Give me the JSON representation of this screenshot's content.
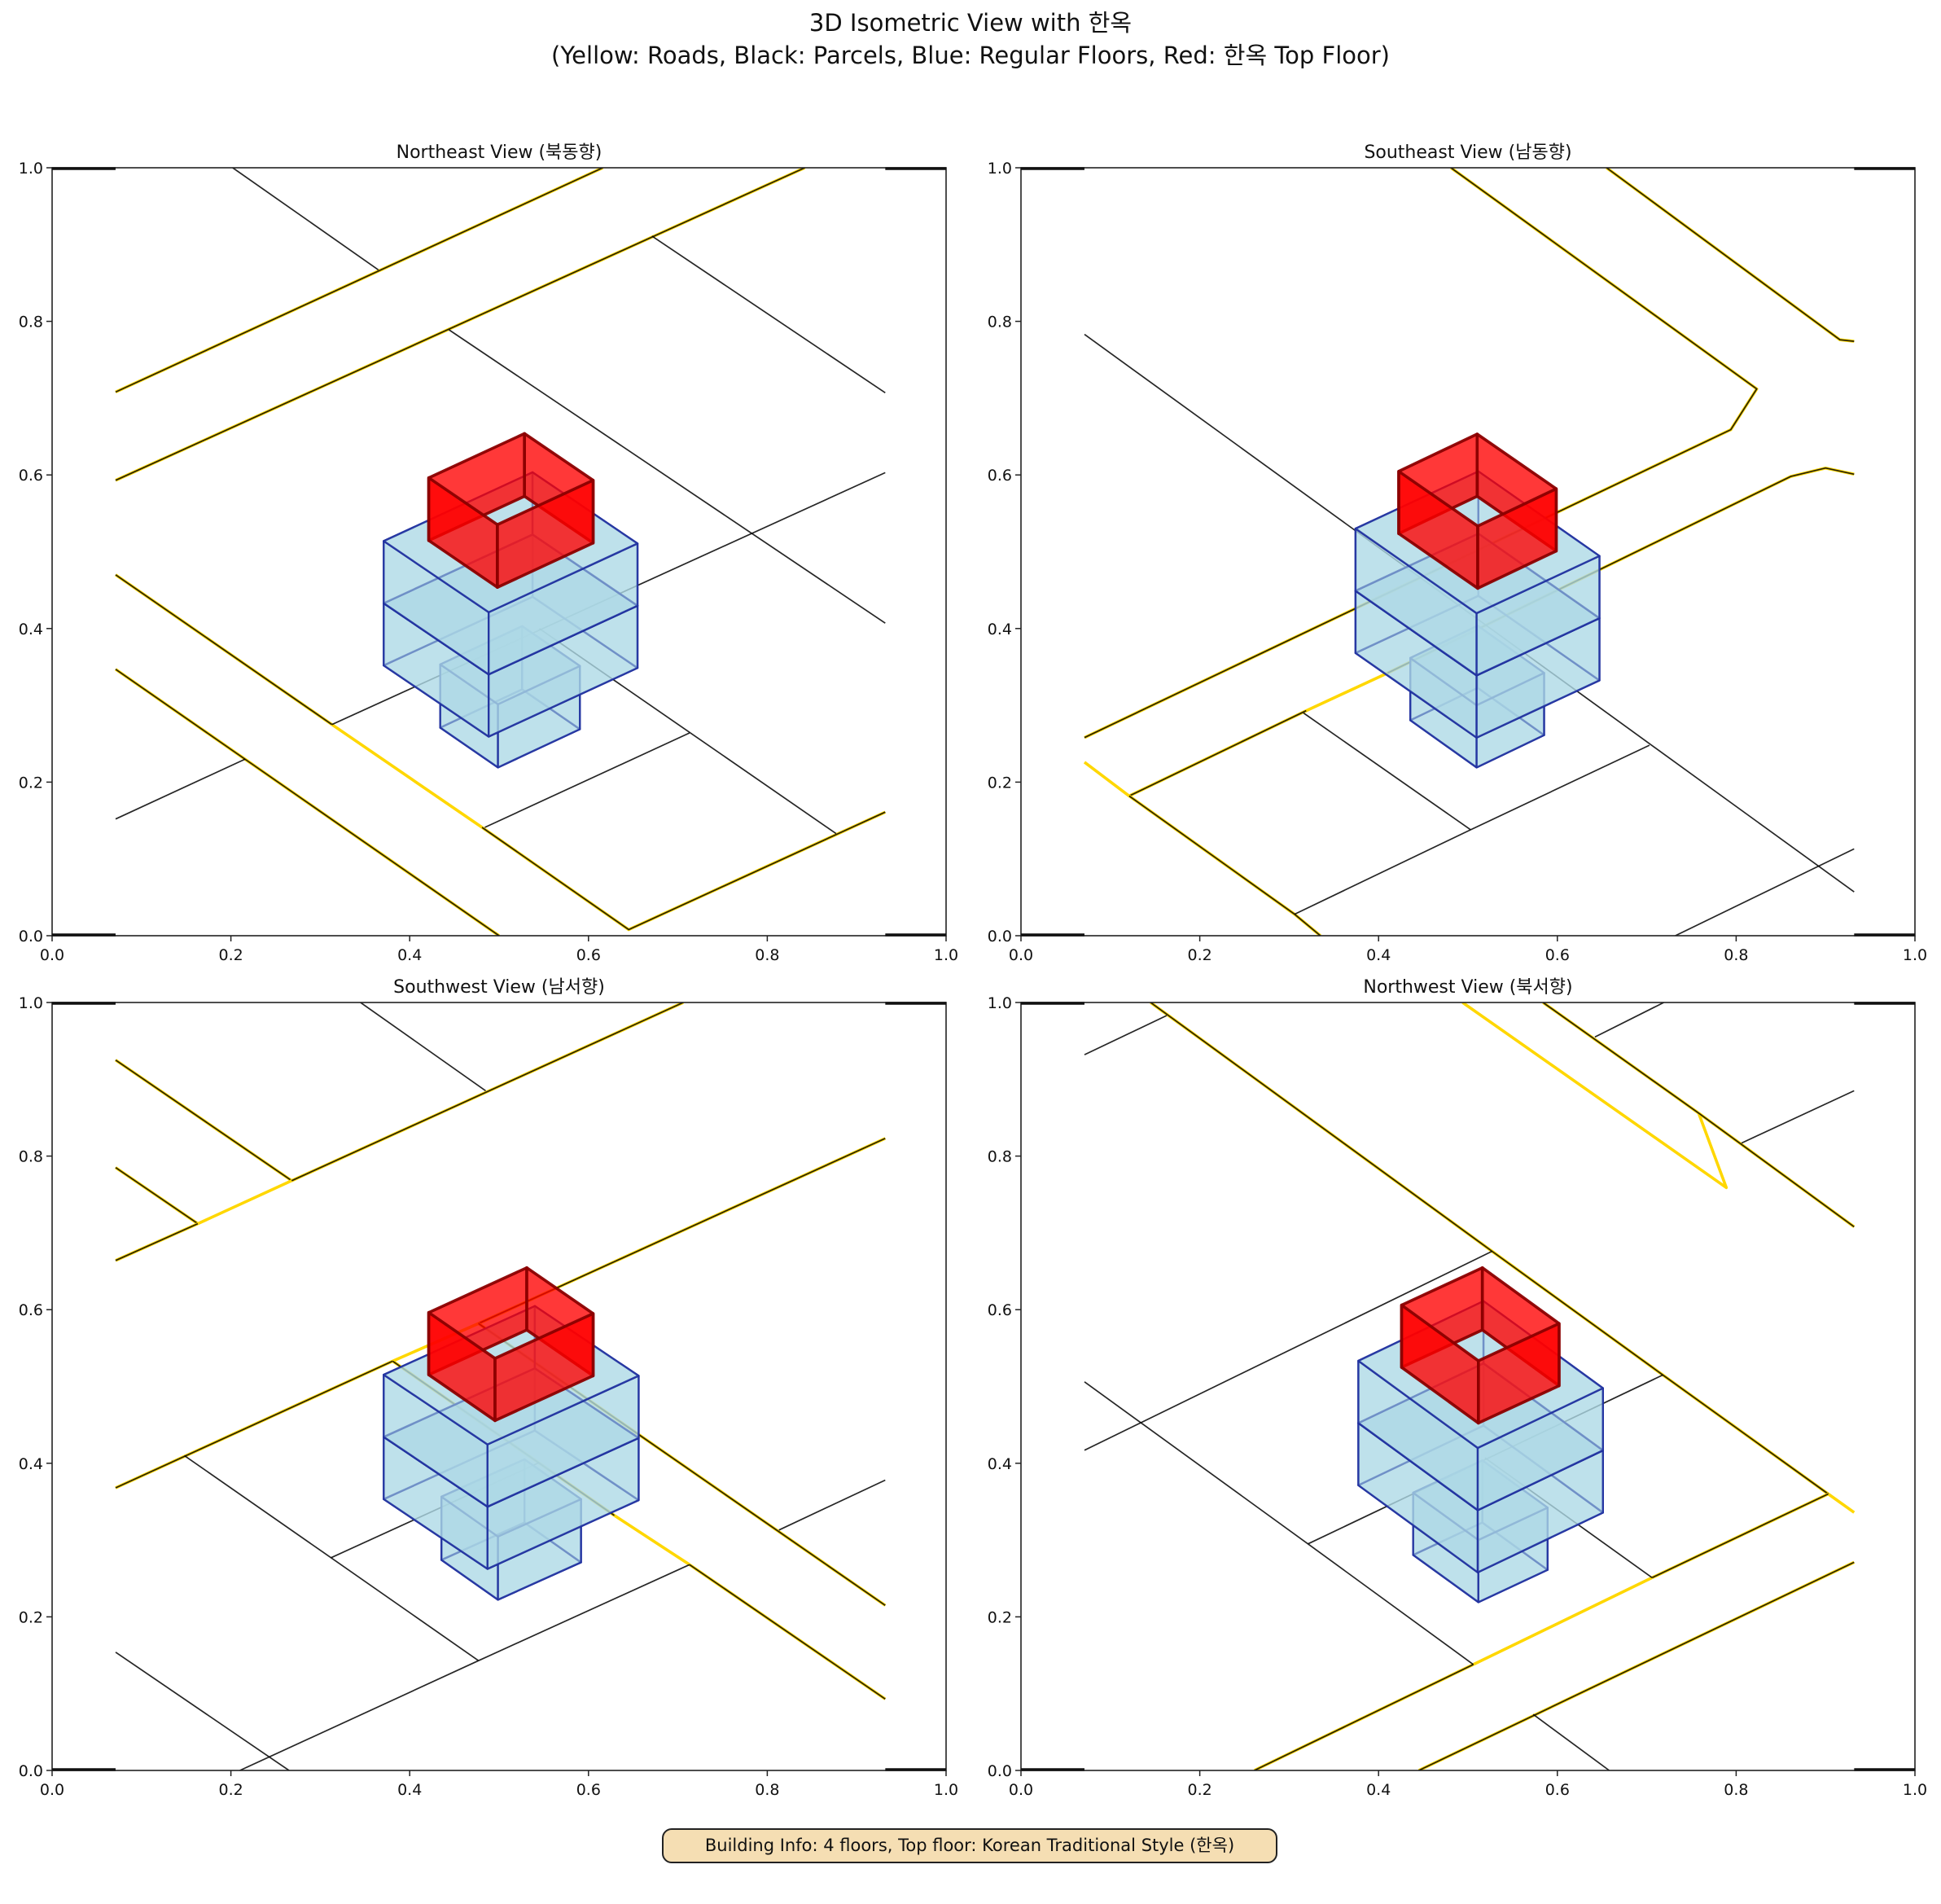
{
  "figure": {
    "title_line1": "3D Isometric View with 한옥",
    "title_line2": "(Yellow: Roads, Black: Parcels, Blue: Regular Floors, Red: 한옥 Top Floor)",
    "info_box": "Building Info: 4 floors, Top floor: Korean Traditional Style (한옥)"
  },
  "colors": {
    "road": "#ffd700",
    "parcel": "#000000",
    "regular_floor": "#add8e6",
    "regular_edge": "#1f2f9f",
    "hanok_floor": "#ff0000",
    "hanok_edge": "#8b0000",
    "info_bg": "#f5deb3"
  },
  "chart_data": [
    {
      "type": "line",
      "title": "Northeast View (북동향)",
      "xlim": [
        0,
        1
      ],
      "ylim": [
        0,
        1
      ],
      "xticks": [
        "0.0",
        "0.2",
        "0.4",
        "0.6",
        "0.8",
        "1.0"
      ],
      "yticks": [
        "0.0",
        "0.2",
        "0.4",
        "0.6",
        "0.8",
        "1.0"
      ],
      "building": {
        "floors": 4,
        "top_floor": "한옥"
      },
      "segments": [
        {
          "kind": "road_parcel",
          "points": [
            [
              0.071,
              0.708
            ],
            [
              0.616,
              1.0
            ]
          ]
        },
        {
          "kind": "road_parcel",
          "points": [
            [
              0.071,
              0.593
            ],
            [
              0.842,
              1.0
            ]
          ]
        },
        {
          "kind": "road_parcel",
          "points": [
            [
              0.071,
              0.47
            ],
            [
              0.313,
              0.275
            ]
          ]
        },
        {
          "kind": "road",
          "points": [
            [
              0.313,
              0.275
            ],
            [
              0.481,
              0.141
            ]
          ]
        },
        {
          "kind": "road_parcel",
          "points": [
            [
              0.481,
              0.141
            ],
            [
              0.645,
              0.008
            ],
            [
              0.932,
              0.161
            ]
          ]
        },
        {
          "kind": "road_parcel",
          "points": [
            [
              0.071,
              0.347
            ],
            [
              0.5,
              0.0
            ]
          ]
        },
        {
          "kind": "parcel",
          "points": [
            [
              0.202,
              1.0
            ],
            [
              0.365,
              0.867
            ]
          ]
        },
        {
          "kind": "parcel",
          "points": [
            [
              0.444,
              0.789
            ],
            [
              0.932,
              0.407
            ]
          ]
        },
        {
          "kind": "parcel",
          "points": [
            [
              0.671,
              0.911
            ],
            [
              0.932,
              0.707
            ]
          ]
        },
        {
          "kind": "parcel",
          "points": [
            [
              0.932,
              0.603
            ],
            [
              0.313,
              0.275
            ]
          ]
        },
        {
          "kind": "parcel",
          "points": [
            [
              0.216,
              0.23
            ],
            [
              0.071,
              0.152
            ]
          ]
        },
        {
          "kind": "parcel",
          "points": [
            [
              0.545,
              0.4
            ],
            [
              0.877,
              0.133
            ]
          ]
        },
        {
          "kind": "parcel",
          "points": [
            [
              0.484,
              0.141
            ],
            [
              0.713,
              0.264
            ]
          ]
        }
      ]
    },
    {
      "type": "line",
      "title": "Southeast View (남동향)",
      "xlim": [
        0,
        1
      ],
      "ylim": [
        0,
        1
      ],
      "xticks": [
        "0.0",
        "0.2",
        "0.4",
        "0.6",
        "0.8",
        "1.0"
      ],
      "yticks": [
        "0.0",
        "0.2",
        "0.4",
        "0.6",
        "0.8",
        "1.0"
      ],
      "building": {
        "floors": 4,
        "top_floor": "한옥"
      },
      "segments": [
        {
          "kind": "road_parcel",
          "points": [
            [
              0.481,
              1.0
            ],
            [
              0.823,
              0.712
            ],
            [
              0.794,
              0.659
            ],
            [
              0.071,
              0.258
            ]
          ]
        },
        {
          "kind": "road_parcel",
          "points": [
            [
              0.655,
              1.0
            ],
            [
              0.916,
              0.776
            ],
            [
              0.932,
              0.774
            ]
          ]
        },
        {
          "kind": "road_parcel",
          "points": [
            [
              0.932,
              0.601
            ],
            [
              0.9,
              0.609
            ],
            [
              0.861,
              0.598
            ],
            [
              0.41,
              0.342
            ]
          ]
        },
        {
          "kind": "road",
          "points": [
            [
              0.41,
              0.342
            ],
            [
              0.319,
              0.293
            ]
          ]
        },
        {
          "kind": "road_parcel",
          "points": [
            [
              0.319,
              0.293
            ],
            [
              0.121,
              0.182
            ]
          ]
        },
        {
          "kind": "road",
          "points": [
            [
              0.071,
              0.226
            ],
            [
              0.121,
              0.182
            ]
          ]
        },
        {
          "kind": "road_parcel",
          "points": [
            [
              0.121,
              0.182
            ],
            [
              0.306,
              0.028
            ],
            [
              0.335,
              0.0
            ]
          ]
        },
        {
          "kind": "parcel",
          "points": [
            [
              0.071,
              0.783
            ],
            [
              0.932,
              0.057
            ]
          ]
        },
        {
          "kind": "parcel",
          "points": [
            [
              0.316,
              0.29
            ],
            [
              0.503,
              0.138
            ]
          ]
        },
        {
          "kind": "parcel",
          "points": [
            [
              0.306,
              0.028
            ],
            [
              0.503,
              0.138
            ],
            [
              0.703,
              0.248
            ]
          ]
        },
        {
          "kind": "parcel",
          "points": [
            [
              0.732,
              0.0
            ],
            [
              0.932,
              0.113
            ]
          ]
        }
      ]
    },
    {
      "type": "line",
      "title": "Southwest View (남서향)",
      "xlim": [
        0,
        1
      ],
      "ylim": [
        0,
        1
      ],
      "xticks": [
        "0.0",
        "0.2",
        "0.4",
        "0.6",
        "0.8",
        "1.0"
      ],
      "yticks": [
        "0.0",
        "0.2",
        "0.4",
        "0.6",
        "0.8",
        "1.0"
      ],
      "building": {
        "floors": 4,
        "top_floor": "한옥"
      },
      "segments": [
        {
          "kind": "road_parcel",
          "points": [
            [
              0.071,
              0.925
            ],
            [
              0.268,
              0.768
            ]
          ]
        },
        {
          "kind": "road_parcel",
          "points": [
            [
              0.071,
              0.785
            ],
            [
              0.163,
              0.712
            ]
          ]
        },
        {
          "kind": "road_parcel",
          "points": [
            [
              0.071,
              0.664
            ],
            [
              0.163,
              0.712
            ]
          ]
        },
        {
          "kind": "road",
          "points": [
            [
              0.163,
              0.712
            ],
            [
              0.268,
              0.768
            ]
          ]
        },
        {
          "kind": "road_parcel",
          "points": [
            [
              0.268,
              0.768
            ],
            [
              0.706,
              1.0
            ]
          ]
        },
        {
          "kind": "road_parcel",
          "points": [
            [
              0.071,
              0.368
            ],
            [
              0.381,
              0.533
            ]
          ]
        },
        {
          "kind": "road",
          "points": [
            [
              0.381,
              0.533
            ],
            [
              0.477,
              0.582
            ]
          ]
        },
        {
          "kind": "road_parcel",
          "points": [
            [
              0.477,
              0.582
            ],
            [
              0.932,
              0.823
            ]
          ]
        },
        {
          "kind": "road_parcel",
          "points": [
            [
              0.381,
              0.533
            ],
            [
              0.629,
              0.332
            ]
          ]
        },
        {
          "kind": "road",
          "points": [
            [
              0.629,
              0.332
            ],
            [
              0.713,
              0.268
            ]
          ]
        },
        {
          "kind": "road_parcel",
          "points": [
            [
              0.713,
              0.268
            ],
            [
              0.932,
              0.093
            ]
          ]
        },
        {
          "kind": "road_parcel",
          "points": [
            [
              0.477,
              0.582
            ],
            [
              0.932,
              0.215
            ]
          ]
        },
        {
          "kind": "parcel",
          "points": [
            [
              0.345,
              1.0
            ],
            [
              0.485,
              0.885
            ]
          ]
        },
        {
          "kind": "parcel",
          "points": [
            [
              0.148,
              0.41
            ],
            [
              0.312,
              0.277
            ],
            [
              0.477,
              0.143
            ]
          ]
        },
        {
          "kind": "parcel",
          "points": [
            [
              0.312,
              0.277
            ],
            [
              0.545,
              0.401
            ]
          ]
        },
        {
          "kind": "parcel",
          "points": [
            [
              0.477,
              0.143
            ],
            [
              0.713,
              0.268
            ]
          ]
        },
        {
          "kind": "parcel",
          "points": [
            [
              0.813,
              0.313
            ],
            [
              0.932,
              0.378
            ]
          ]
        },
        {
          "kind": "parcel",
          "points": [
            [
              0.071,
              0.154
            ],
            [
              0.265,
              0.0
            ]
          ]
        },
        {
          "kind": "parcel",
          "points": [
            [
              0.21,
              0.0
            ],
            [
              0.477,
              0.143
            ]
          ]
        }
      ]
    },
    {
      "type": "line",
      "title": "Northwest View (북서향)",
      "xlim": [
        0,
        1
      ],
      "ylim": [
        0,
        1
      ],
      "xticks": [
        "0.0",
        "0.2",
        "0.4",
        "0.6",
        "0.8",
        "1.0"
      ],
      "yticks": [
        "0.0",
        "0.2",
        "0.4",
        "0.6",
        "0.8",
        "1.0"
      ],
      "building": {
        "floors": 4,
        "top_floor": "한옥"
      },
      "segments": [
        {
          "kind": "road_parcel",
          "points": [
            [
              0.145,
              1.0
            ],
            [
              0.527,
              0.676
            ],
            [
              0.718,
              0.515
            ],
            [
              0.903,
              0.36
            ]
          ]
        },
        {
          "kind": "road",
          "points": [
            [
              0.903,
              0.36
            ],
            [
              0.932,
              0.336
            ]
          ]
        },
        {
          "kind": "road_parcel",
          "points": [
            [
              0.903,
              0.36
            ],
            [
              0.706,
              0.251
            ]
          ]
        },
        {
          "kind": "road",
          "points": [
            [
              0.706,
              0.251
            ],
            [
              0.506,
              0.138
            ]
          ]
        },
        {
          "kind": "road_parcel",
          "points": [
            [
              0.506,
              0.138
            ],
            [
              0.261,
              0.0
            ]
          ]
        },
        {
          "kind": "road_parcel",
          "points": [
            [
              0.932,
              0.271
            ],
            [
              0.445,
              0.0
            ]
          ]
        },
        {
          "kind": "road",
          "points": [
            [
              0.494,
              1.0
            ],
            [
              0.789,
              0.759
            ],
            [
              0.758,
              0.856
            ]
          ]
        },
        {
          "kind": "road_parcel",
          "points": [
            [
              0.584,
              1.0
            ],
            [
              0.758,
              0.856
            ],
            [
              0.932,
              0.708
            ]
          ]
        },
        {
          "kind": "parcel",
          "points": [
            [
              0.071,
              0.932
            ],
            [
              0.163,
              0.983
            ]
          ]
        },
        {
          "kind": "parcel",
          "points": [
            [
              0.642,
              0.955
            ],
            [
              0.719,
              1.0
            ]
          ]
        },
        {
          "kind": "parcel",
          "points": [
            [
              0.806,
              0.817
            ],
            [
              0.932,
              0.885
            ]
          ]
        },
        {
          "kind": "parcel",
          "points": [
            [
              0.071,
              0.417
            ],
            [
              0.527,
              0.676
            ]
          ]
        },
        {
          "kind": "parcel",
          "points": [
            [
              0.071,
              0.506
            ],
            [
              0.321,
              0.295
            ],
            [
              0.506,
              0.138
            ]
          ]
        },
        {
          "kind": "parcel",
          "points": [
            [
              0.321,
              0.295
            ],
            [
              0.718,
              0.515
            ]
          ]
        },
        {
          "kind": "parcel",
          "points": [
            [
              0.519,
              0.407
            ],
            [
              0.706,
              0.251
            ]
          ]
        },
        {
          "kind": "parcel",
          "points": [
            [
              0.573,
              0.073
            ],
            [
              0.658,
              0.0
            ]
          ]
        }
      ]
    }
  ]
}
